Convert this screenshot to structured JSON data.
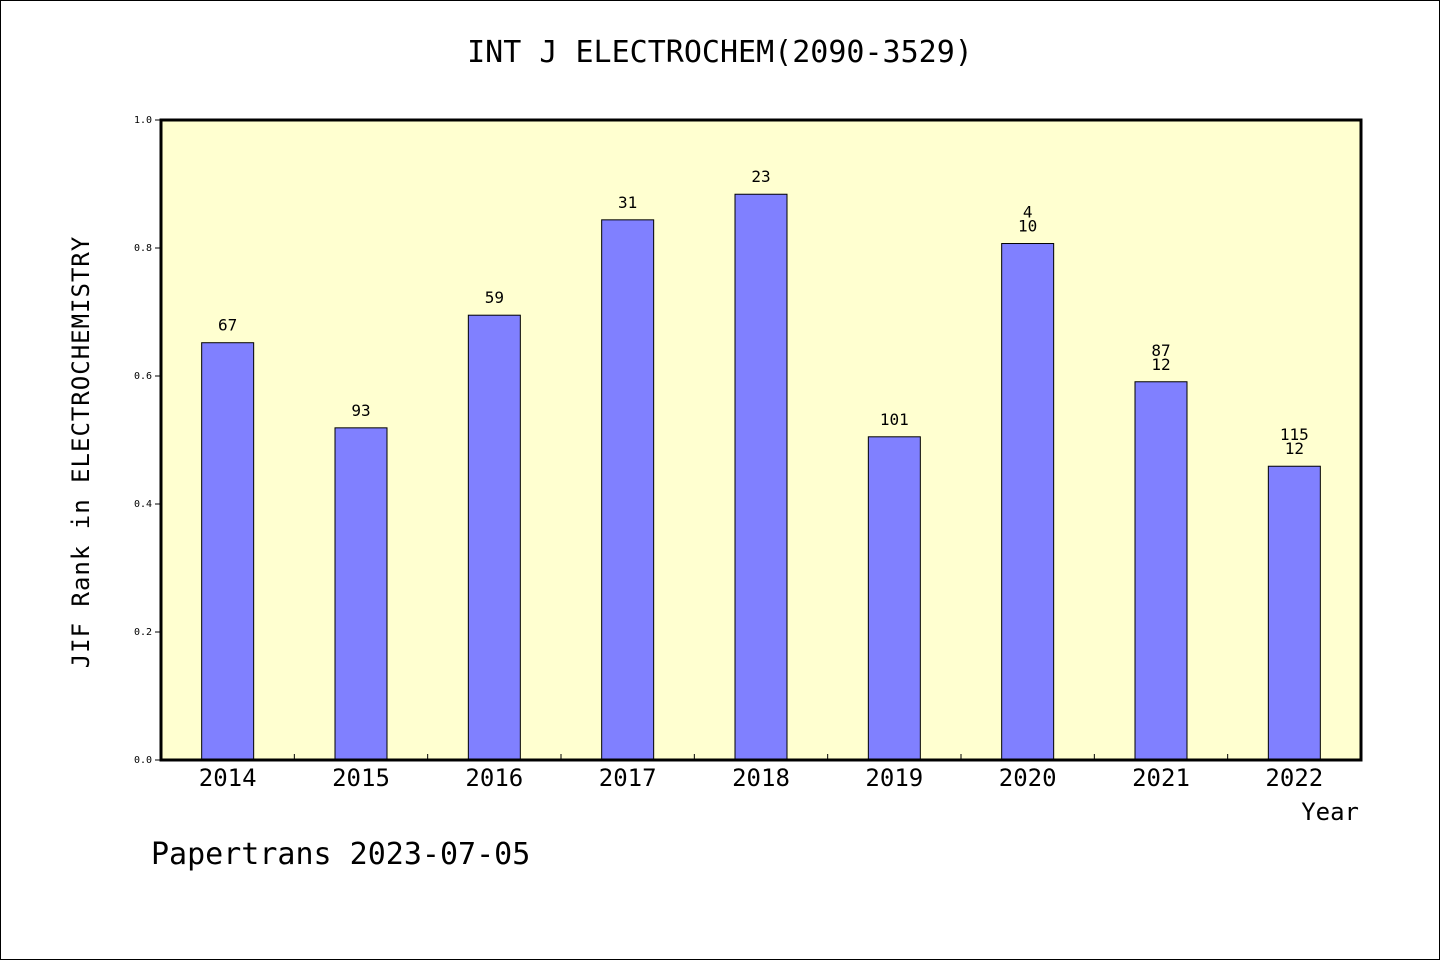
{
  "chart_data": {
    "type": "bar",
    "title": "INT J ELECTROCHEM(2090-3529)",
    "xlabel": "Year",
    "ylabel": "JIF Rank in ELECTROCHEMISTRY",
    "ylim": [
      0,
      1.0
    ],
    "yticks": [
      "0.0",
      "0.2",
      "0.4",
      "0.6",
      "0.8",
      "1.0"
    ],
    "categories": [
      "2014",
      "2015",
      "2016",
      "2017",
      "2018",
      "2019",
      "2020",
      "2021",
      "2022"
    ],
    "values": [
      0.652,
      0.519,
      0.695,
      0.844,
      0.884,
      0.505,
      0.807,
      0.591,
      0.459
    ],
    "bar_labels": [
      [
        "67"
      ],
      [
        "93"
      ],
      [
        "59"
      ],
      [
        "31"
      ],
      [
        "23"
      ],
      [
        "101"
      ],
      [
        "4",
        "10"
      ],
      [
        "87",
        "12"
      ],
      [
        "115",
        "12"
      ]
    ],
    "grid": false,
    "colors": {
      "bar": "#8080ff",
      "plot_background": "#ffffd0",
      "axis": "#000000"
    }
  },
  "footer": "Papertrans 2023-07-05"
}
